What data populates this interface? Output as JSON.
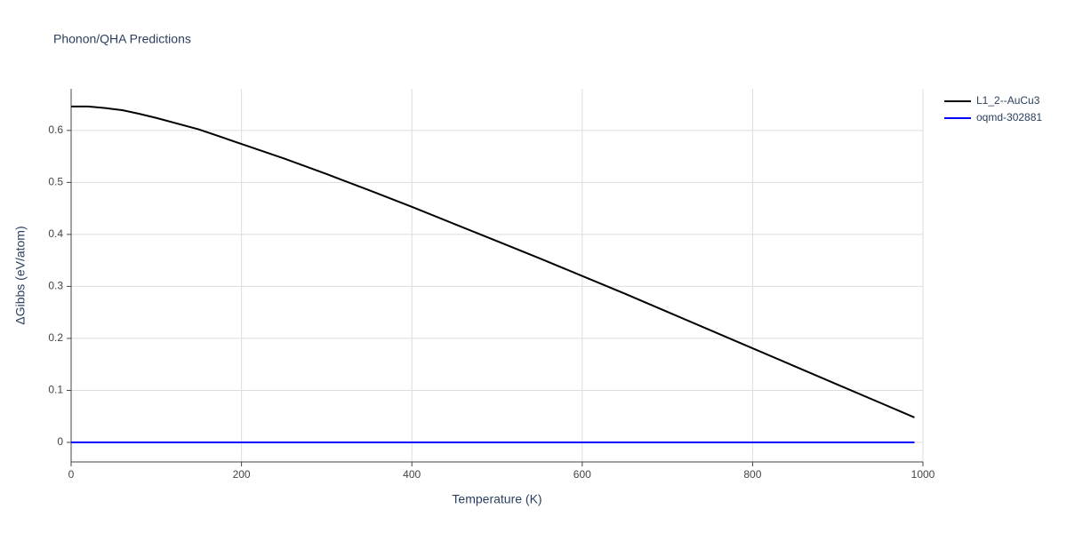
{
  "chart_data": {
    "type": "line",
    "title": "Phonon/QHA Predictions",
    "x_label": "Temperature (K)",
    "y_label": "ΔGibbs (eV/atom)",
    "x": [
      0,
      20,
      40,
      60,
      80,
      100,
      150,
      200,
      250,
      300,
      350,
      400,
      450,
      500,
      550,
      600,
      650,
      700,
      750,
      800,
      850,
      900,
      950,
      990
    ],
    "series": [
      {
        "name": "L1_2--AuCu3",
        "color": "#000000",
        "values": [
          0.646,
          0.646,
          0.643,
          0.639,
          0.632,
          0.624,
          0.602,
          0.574,
          0.546,
          0.516,
          0.485,
          0.453,
          0.42,
          0.387,
          0.354,
          0.32,
          0.286,
          0.251,
          0.216,
          0.181,
          0.146,
          0.111,
          0.076,
          0.048
        ]
      },
      {
        "name": "oqmd-302881",
        "color": "#0000ff",
        "values": [
          0,
          0,
          0,
          0,
          0,
          0,
          0,
          0,
          0,
          0,
          0,
          0,
          0,
          0,
          0,
          0,
          0,
          0,
          0,
          0,
          0,
          0,
          0,
          0
        ]
      }
    ],
    "xlim": [
      0,
      1000
    ],
    "xticks": [
      0,
      200,
      400,
      600,
      800,
      1000
    ],
    "ylim": [
      -0.0376,
      0.68
    ],
    "yticks": [
      0,
      0.1,
      0.2,
      0.3,
      0.4,
      0.5,
      0.6
    ],
    "grid": true
  }
}
